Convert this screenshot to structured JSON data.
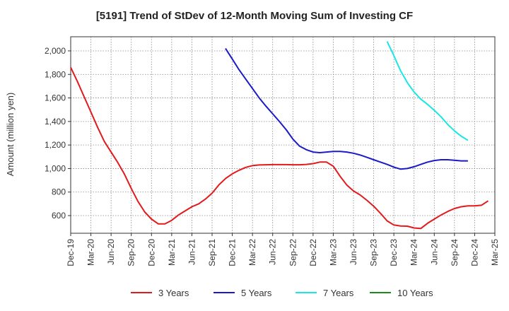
{
  "chart_data": {
    "type": "line",
    "title": "[5191]  Trend of StDev of 12-Month Moving Sum of Investing CF",
    "ylabel": "Amount (million yen)",
    "xlabel": "",
    "ylim": [
      450,
      2120
    ],
    "yticks": [
      600,
      800,
      1000,
      1200,
      1400,
      1600,
      1800,
      2000
    ],
    "ytick_labels": [
      "600",
      "800",
      "1,000",
      "1,200",
      "1,400",
      "1,600",
      "1,800",
      "2,000"
    ],
    "x_start": "Dec-19",
    "x_end": "Mar-25",
    "xtick_labels": [
      "Dec-19",
      "Mar-20",
      "Jun-20",
      "Sep-20",
      "Dec-20",
      "Mar-21",
      "Jun-21",
      "Sep-21",
      "Dec-21",
      "Mar-22",
      "Jun-22",
      "Sep-22",
      "Dec-22",
      "Mar-23",
      "Jun-23",
      "Sep-23",
      "Dec-23",
      "Mar-24",
      "Jun-24",
      "Sep-24",
      "Dec-24",
      "Mar-25"
    ],
    "grid": true,
    "legend_position": "bottom",
    "series": [
      {
        "name": "3 Years",
        "color": "#e31a1c",
        "start": "Dec-19",
        "values": [
          1860,
          1740,
          1610,
          1480,
          1350,
          1230,
          1140,
          1050,
          950,
          830,
          720,
          630,
          570,
          530,
          530,
          560,
          605,
          640,
          675,
          700,
          740,
          790,
          860,
          915,
          955,
          985,
          1010,
          1025,
          1030,
          1032,
          1033,
          1033,
          1033,
          1032,
          1032,
          1035,
          1042,
          1055,
          1055,
          1020,
          935,
          860,
          810,
          775,
          730,
          680,
          620,
          555,
          520,
          512,
          510,
          495,
          490,
          535,
          570,
          605,
          635,
          660,
          675,
          683,
          683,
          688,
          725
        ]
      },
      {
        "name": "5 Years",
        "color": "#1a1ac8",
        "start": "Nov-21",
        "values": [
          2020,
          1930,
          1840,
          1760,
          1680,
          1600,
          1530,
          1465,
          1400,
          1330,
          1250,
          1190,
          1160,
          1140,
          1135,
          1140,
          1145,
          1145,
          1140,
          1130,
          1115,
          1095,
          1075,
          1055,
          1035,
          1012,
          995,
          1000,
          1015,
          1035,
          1055,
          1068,
          1075,
          1075,
          1070,
          1065,
          1065
        ]
      },
      {
        "name": "7 Years",
        "color": "#19e6e6",
        "start": "Nov-23",
        "values": [
          2080,
          1960,
          1830,
          1730,
          1650,
          1590,
          1545,
          1495,
          1440,
          1375,
          1320,
          1275,
          1240
        ]
      },
      {
        "name": "10 Years",
        "color": "#1a8c1a",
        "start": "Dec-24",
        "values": []
      }
    ]
  }
}
